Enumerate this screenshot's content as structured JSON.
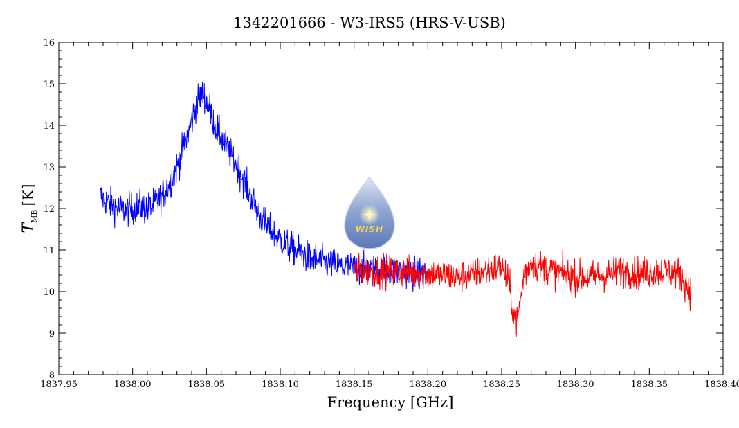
{
  "chart_data": {
    "type": "line",
    "title": "1342201666 - W3-IRS5 (HRS-V-USB)",
    "xlabel": "Frequency [GHz]",
    "ylabel": {
      "main": "T",
      "sub": "MB",
      "unit": "[K]"
    },
    "xlim": [
      1837.95,
      1838.4
    ],
    "ylim": [
      8,
      16
    ],
    "xticks": [
      "1837.95",
      "1838.00",
      "1838.05",
      "1838.10",
      "1838.15",
      "1838.20",
      "1838.25",
      "1838.30",
      "1838.35",
      "1838.40"
    ],
    "yticks": [
      "8",
      "9",
      "10",
      "11",
      "12",
      "13",
      "14",
      "15",
      "16"
    ],
    "grid": false,
    "legend": "none",
    "series": [
      {
        "color": "#0000ff",
        "x": [
          1837.978,
          1837.985,
          1837.99,
          1837.995,
          1838.0,
          1838.005,
          1838.01,
          1838.015,
          1838.02,
          1838.025,
          1838.03,
          1838.035,
          1838.04,
          1838.043,
          1838.046,
          1838.048,
          1838.05,
          1838.053,
          1838.056,
          1838.06,
          1838.065,
          1838.07,
          1838.075,
          1838.08,
          1838.085,
          1838.09,
          1838.095,
          1838.1,
          1838.105,
          1838.11,
          1838.115,
          1838.12,
          1838.13,
          1838.14,
          1838.15,
          1838.16,
          1838.17,
          1838.18,
          1838.19,
          1838.2
        ],
        "y": [
          12.3,
          12.1,
          12.0,
          11.95,
          12.0,
          12.05,
          12.0,
          12.1,
          12.3,
          12.6,
          13.0,
          13.5,
          14.1,
          14.5,
          14.7,
          14.75,
          14.6,
          14.3,
          14.0,
          13.7,
          13.4,
          13.1,
          12.7,
          12.3,
          11.9,
          11.6,
          11.4,
          11.25,
          11.1,
          11.0,
          10.9,
          10.8,
          10.7,
          10.6,
          10.55,
          10.5,
          10.5,
          10.48,
          10.45,
          10.45
        ],
        "noise": 0.28,
        "samples": 900
      },
      {
        "color": "#ff0000",
        "x": [
          1838.15,
          1838.16,
          1838.17,
          1838.18,
          1838.19,
          1838.2,
          1838.21,
          1838.22,
          1838.23,
          1838.24,
          1838.25,
          1838.255,
          1838.258,
          1838.26,
          1838.262,
          1838.265,
          1838.27,
          1838.28,
          1838.29,
          1838.3,
          1838.31,
          1838.32,
          1838.33,
          1838.34,
          1838.35,
          1838.36,
          1838.37,
          1838.378
        ],
        "y": [
          10.5,
          10.5,
          10.5,
          10.48,
          10.45,
          10.42,
          10.4,
          10.35,
          10.4,
          10.5,
          10.6,
          10.2,
          9.5,
          9.2,
          9.6,
          10.4,
          10.7,
          10.55,
          10.45,
          10.35,
          10.35,
          10.4,
          10.5,
          10.45,
          10.45,
          10.5,
          10.45,
          10.0
        ],
        "noise": 0.28,
        "samples": 900
      }
    ]
  },
  "logo": {
    "text": "WISH"
  }
}
